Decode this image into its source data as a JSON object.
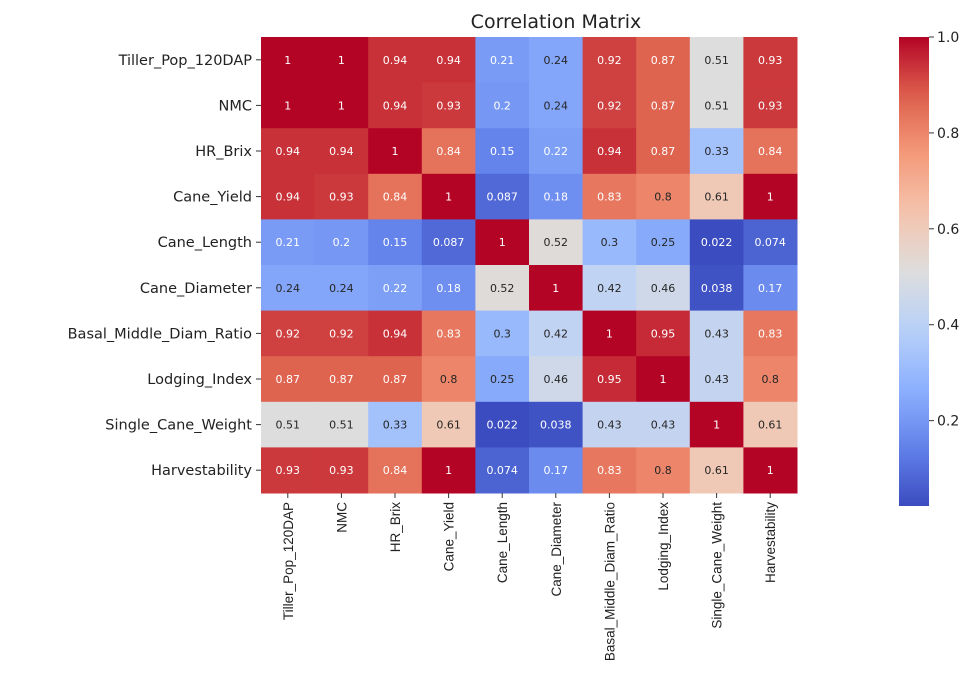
{
  "chart_data": {
    "type": "heatmap",
    "title": "Correlation Matrix",
    "variables": [
      "Tiller_Pop_120DAP",
      "NMC",
      "HR_Brix",
      "Cane_Yield",
      "Cane_Length",
      "Cane_Diameter",
      "Basal_Middle_Diam_Ratio",
      "Lodging_Index",
      "Single_Cane_Weight",
      "Harvestability"
    ],
    "values": [
      [
        1,
        1,
        0.94,
        0.94,
        0.21,
        0.24,
        0.92,
        0.87,
        0.51,
        0.93
      ],
      [
        1,
        1,
        0.94,
        0.93,
        0.2,
        0.24,
        0.92,
        0.87,
        0.51,
        0.93
      ],
      [
        0.94,
        0.94,
        1,
        0.84,
        0.15,
        0.22,
        0.94,
        0.87,
        0.33,
        0.84
      ],
      [
        0.94,
        0.93,
        0.84,
        1,
        0.087,
        0.18,
        0.83,
        0.8,
        0.61,
        1
      ],
      [
        0.21,
        0.2,
        0.15,
        0.087,
        1,
        0.52,
        0.3,
        0.25,
        0.022,
        0.074
      ],
      [
        0.24,
        0.24,
        0.22,
        0.18,
        0.52,
        1,
        0.42,
        0.46,
        0.038,
        0.17
      ],
      [
        0.92,
        0.92,
        0.94,
        0.83,
        0.3,
        0.42,
        1,
        0.95,
        0.43,
        0.83
      ],
      [
        0.87,
        0.87,
        0.87,
        0.8,
        0.25,
        0.46,
        0.95,
        1,
        0.43,
        0.8
      ],
      [
        0.51,
        0.51,
        0.33,
        0.61,
        0.022,
        0.038,
        0.43,
        0.43,
        1,
        0.61
      ],
      [
        0.93,
        0.93,
        0.84,
        1,
        0.074,
        0.17,
        0.83,
        0.8,
        0.61,
        1
      ]
    ],
    "colormap": "coolwarm",
    "vmin": 0.022,
    "vmax": 1.0,
    "colorbar_ticks": [
      "0.2",
      "0.4",
      "0.6",
      "0.8",
      "1.0"
    ],
    "colorbar_tick_values": [
      0.2,
      0.4,
      0.6,
      0.8,
      1.0
    ],
    "annotations": true,
    "legend_position": "right"
  }
}
